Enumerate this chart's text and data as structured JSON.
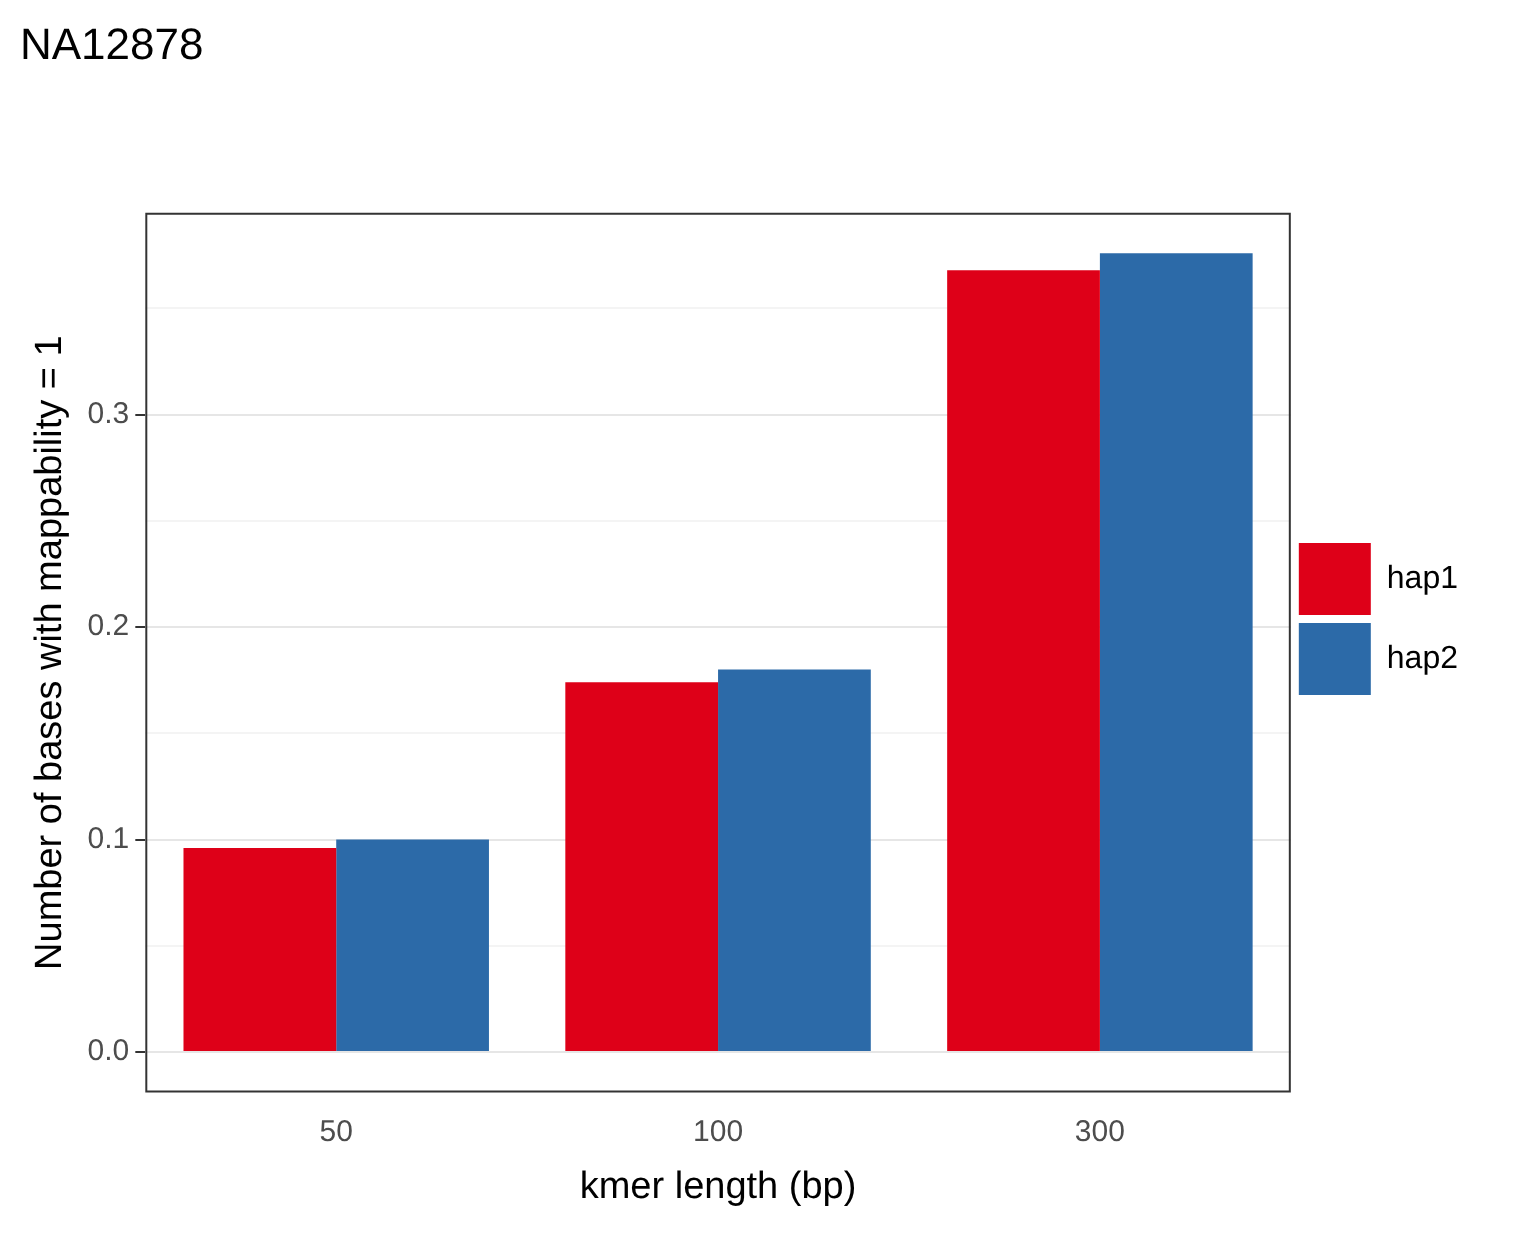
{
  "chart_data": {
    "type": "bar",
    "title": "NA12878",
    "xlabel": "kmer length (bp)",
    "ylabel": "Number of bases with mappability = 1",
    "categories": [
      "50",
      "100",
      "300"
    ],
    "series": [
      {
        "name": "hap1",
        "color": "#de0018",
        "values": [
          0.096,
          0.174,
          0.368
        ]
      },
      {
        "name": "hap2",
        "color": "#2c6aa8",
        "values": [
          0.1,
          0.18,
          0.376
        ]
      }
    ],
    "ylim": [
      -0.019,
      0.395
    ],
    "yticks": [
      {
        "value": 0,
        "label": "0.0"
      },
      {
        "value": 0.05,
        "label": null
      },
      {
        "value": 0.1,
        "label": "0.1"
      },
      {
        "value": 0.15,
        "label": null
      },
      {
        "value": 0.2,
        "label": "0.2"
      },
      {
        "value": 0.25,
        "label": null
      },
      {
        "value": 0.3,
        "label": "0.3"
      },
      {
        "value": 0.35,
        "label": null
      }
    ],
    "grid": "y",
    "legend": "right"
  }
}
